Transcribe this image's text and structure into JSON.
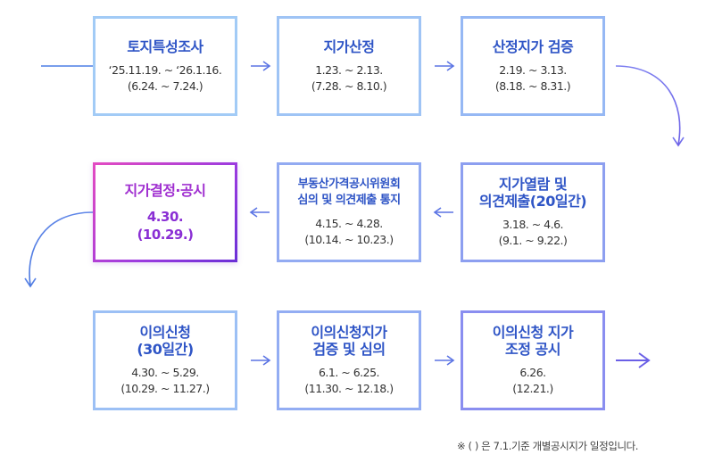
{
  "steps": [
    {
      "title": "토지특성조사",
      "dates": "‘25.11.19. ~ ‘26.1.16.\n(6.24. ~ 7.24.)"
    },
    {
      "title": "지가산정",
      "dates": "1.23. ~ 2.13.\n(7.28. ~ 8.10.)"
    },
    {
      "title": "산정지가 검증",
      "dates": "2.19. ~ 3.13.\n(8.18. ~ 8.31.)"
    },
    {
      "title": "지가열람 및\n의견제출(20일간)",
      "dates": "3.18. ~ 4.6.\n(9.1. ~ 9.22.)"
    },
    {
      "title": "부동산가격공시위원회\n심의 및 의견제출 통지",
      "dates": "4.15. ~ 4.28.\n(10.14. ~ 10.23.)"
    },
    {
      "title": "지가결정·공시",
      "dates": "4.30.\n(10.29.)"
    },
    {
      "title": "이의신청\n(30일간)",
      "dates": "4.30. ~ 5.29.\n(10.29. ~ 11.27.)"
    },
    {
      "title": "이의신청지가\n검증 및 심의",
      "dates": "6.1. ~ 6.25.\n(11.30. ~ 12.18.)"
    },
    {
      "title": "이의신청 지가\n조정 공시",
      "dates": "6.26.\n(12.21.)"
    }
  ],
  "footnote": "※ ( ) 은 7.1.기준 개별공시지가 일정입니다.",
  "colors": {
    "box_border_start": "#9cc3f5",
    "box_border_end": "#8a82ee",
    "title_text": "#2f55c6",
    "final_border": "#c13fd6",
    "final_text": "#a02fd0",
    "arrow": "#5b6fe0"
  }
}
